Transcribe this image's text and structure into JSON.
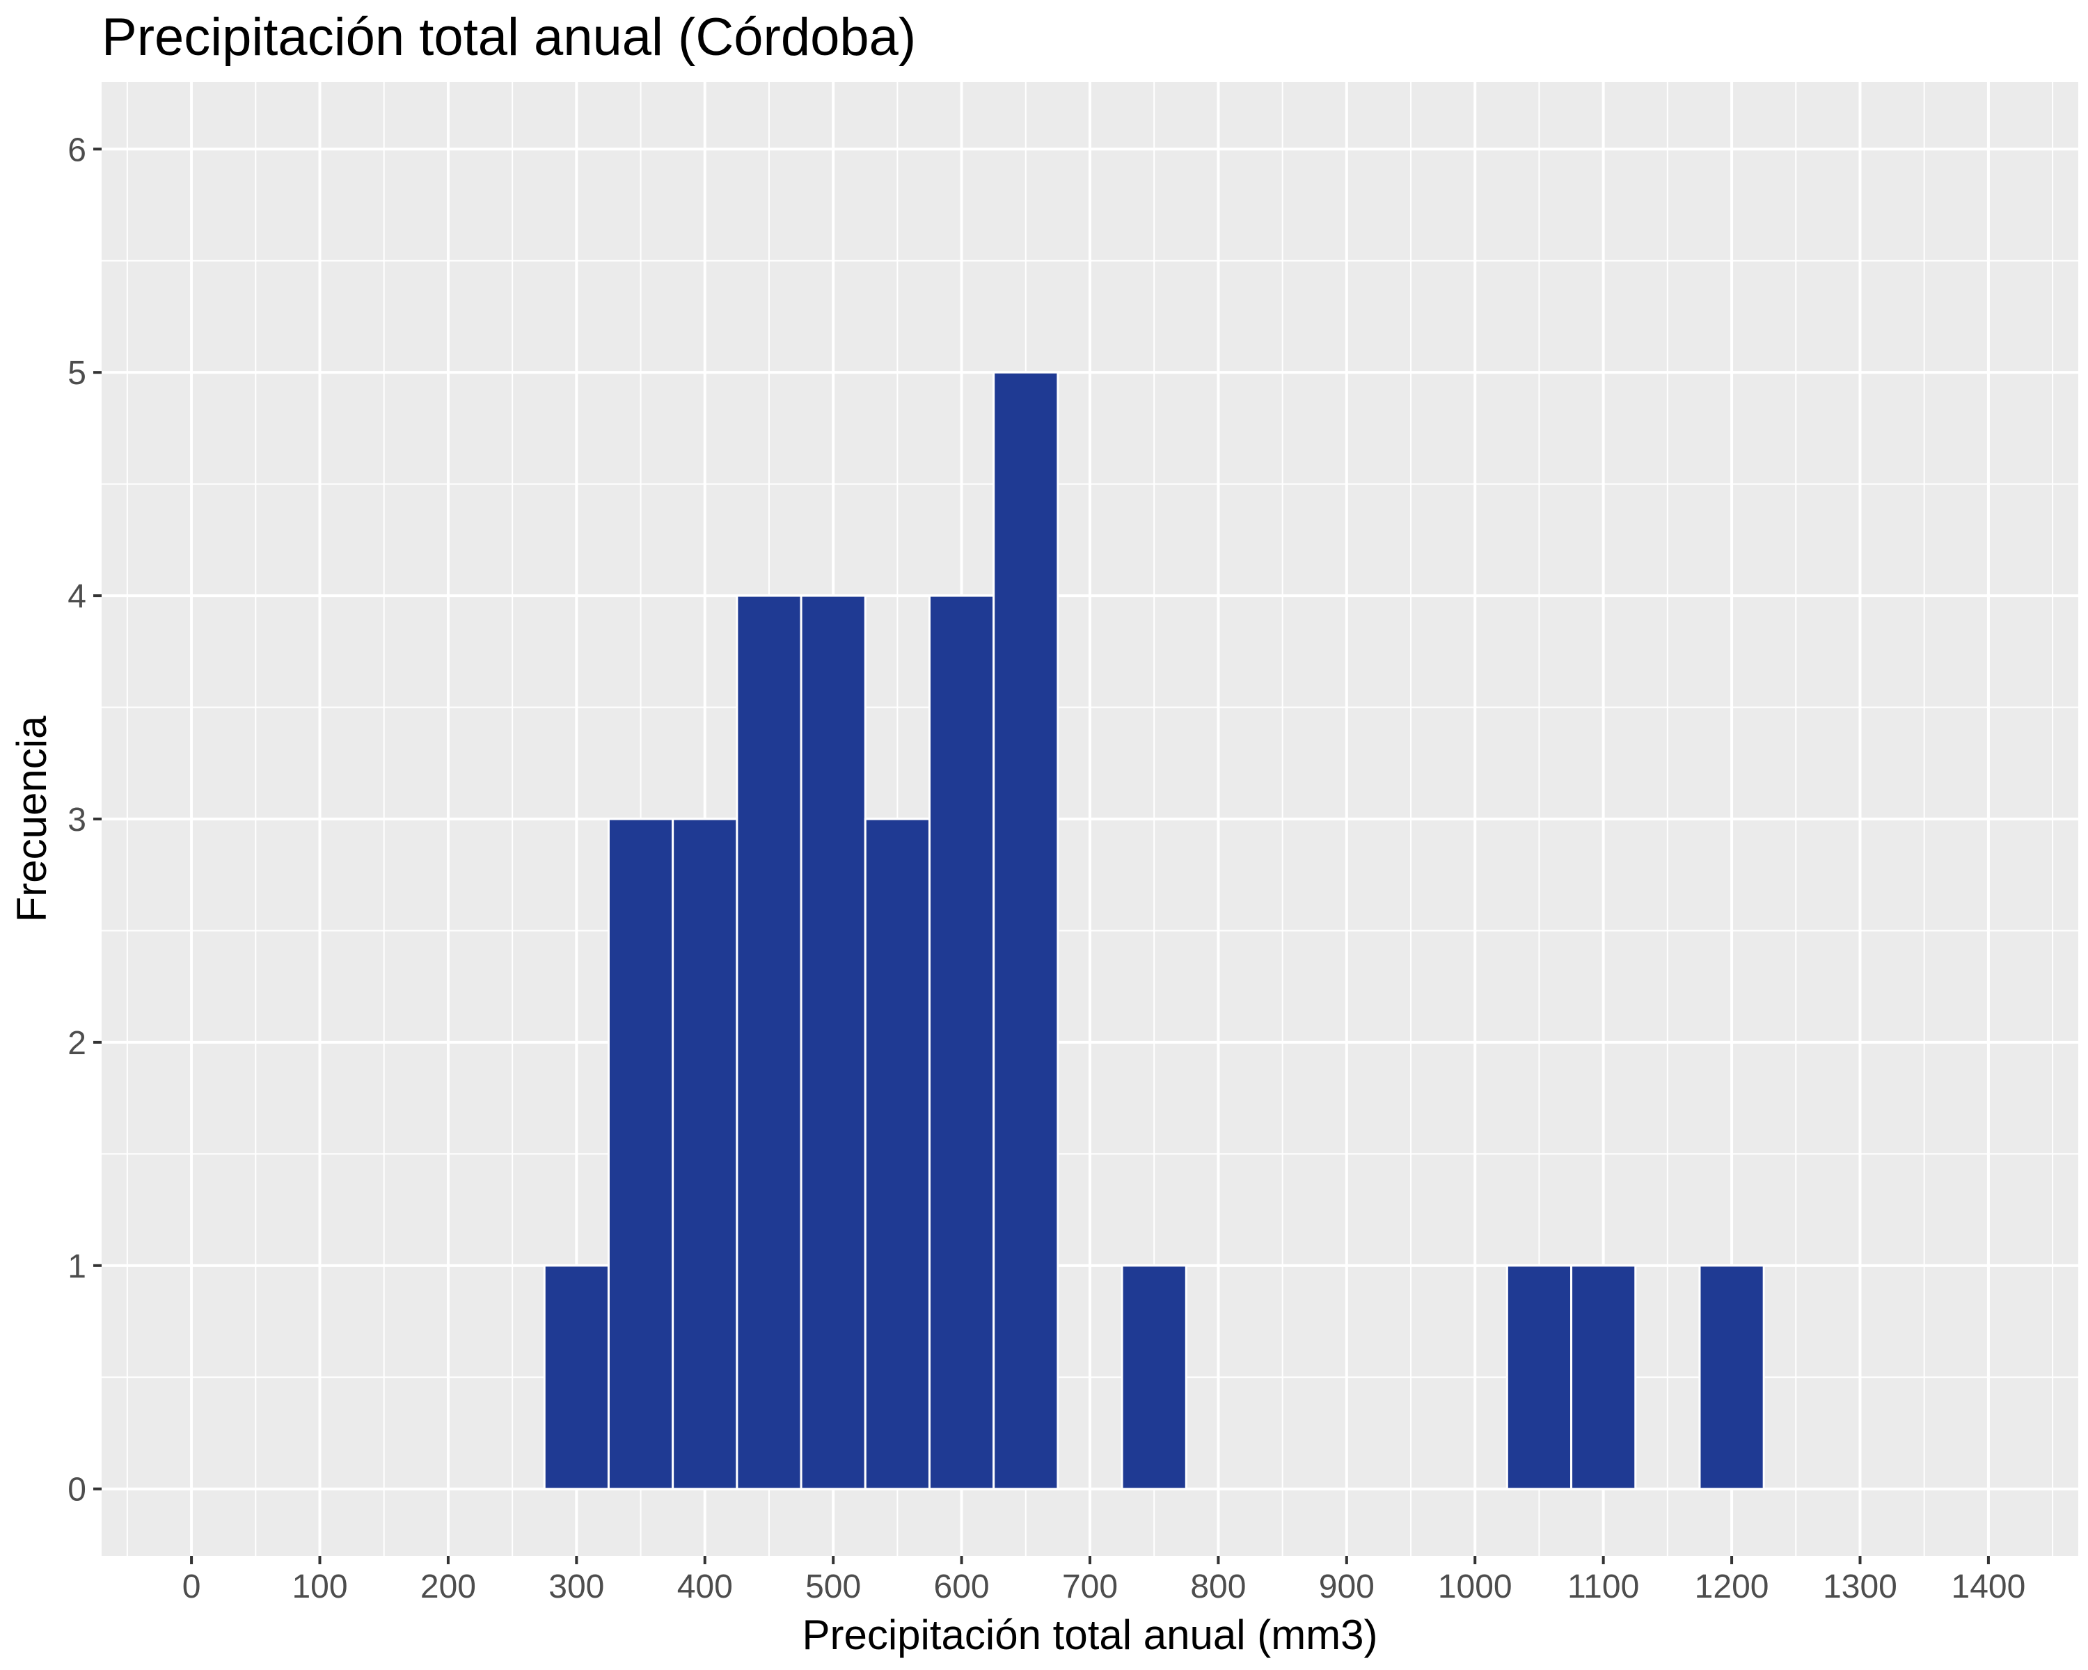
{
  "chart_data": {
    "type": "bar",
    "title": "Precipitación total anual (Córdoba)",
    "xlabel": "Precipitación total anual (mm3)",
    "ylabel": "Frecuencia",
    "bin_width": 50,
    "bins": [
      {
        "start": 275,
        "end": 325,
        "count": 1
      },
      {
        "start": 325,
        "end": 375,
        "count": 3
      },
      {
        "start": 375,
        "end": 425,
        "count": 3
      },
      {
        "start": 425,
        "end": 475,
        "count": 4
      },
      {
        "start": 475,
        "end": 525,
        "count": 4
      },
      {
        "start": 525,
        "end": 575,
        "count": 3
      },
      {
        "start": 575,
        "end": 625,
        "count": 4
      },
      {
        "start": 625,
        "end": 675,
        "count": 5
      },
      {
        "start": 725,
        "end": 775,
        "count": 1
      },
      {
        "start": 1025,
        "end": 1075,
        "count": 1
      },
      {
        "start": 1075,
        "end": 1125,
        "count": 1
      },
      {
        "start": 1175,
        "end": 1225,
        "count": 1
      }
    ],
    "xlim": [
      -70,
      1470
    ],
    "ylim": [
      -0.3,
      6.3
    ],
    "xticks": [
      0,
      100,
      200,
      300,
      400,
      500,
      600,
      700,
      800,
      900,
      1000,
      1100,
      1200,
      1300,
      1400
    ],
    "yticks": [
      0,
      1,
      2,
      3,
      4,
      5,
      6
    ],
    "grid": true,
    "colors": {
      "bar_fill": "#1f3a93",
      "bar_outline": "#ffffff",
      "panel_background": "#ebebeb",
      "grid_major": "#ffffff",
      "text": "#000000",
      "tick_text": "#4d4d4d"
    }
  }
}
